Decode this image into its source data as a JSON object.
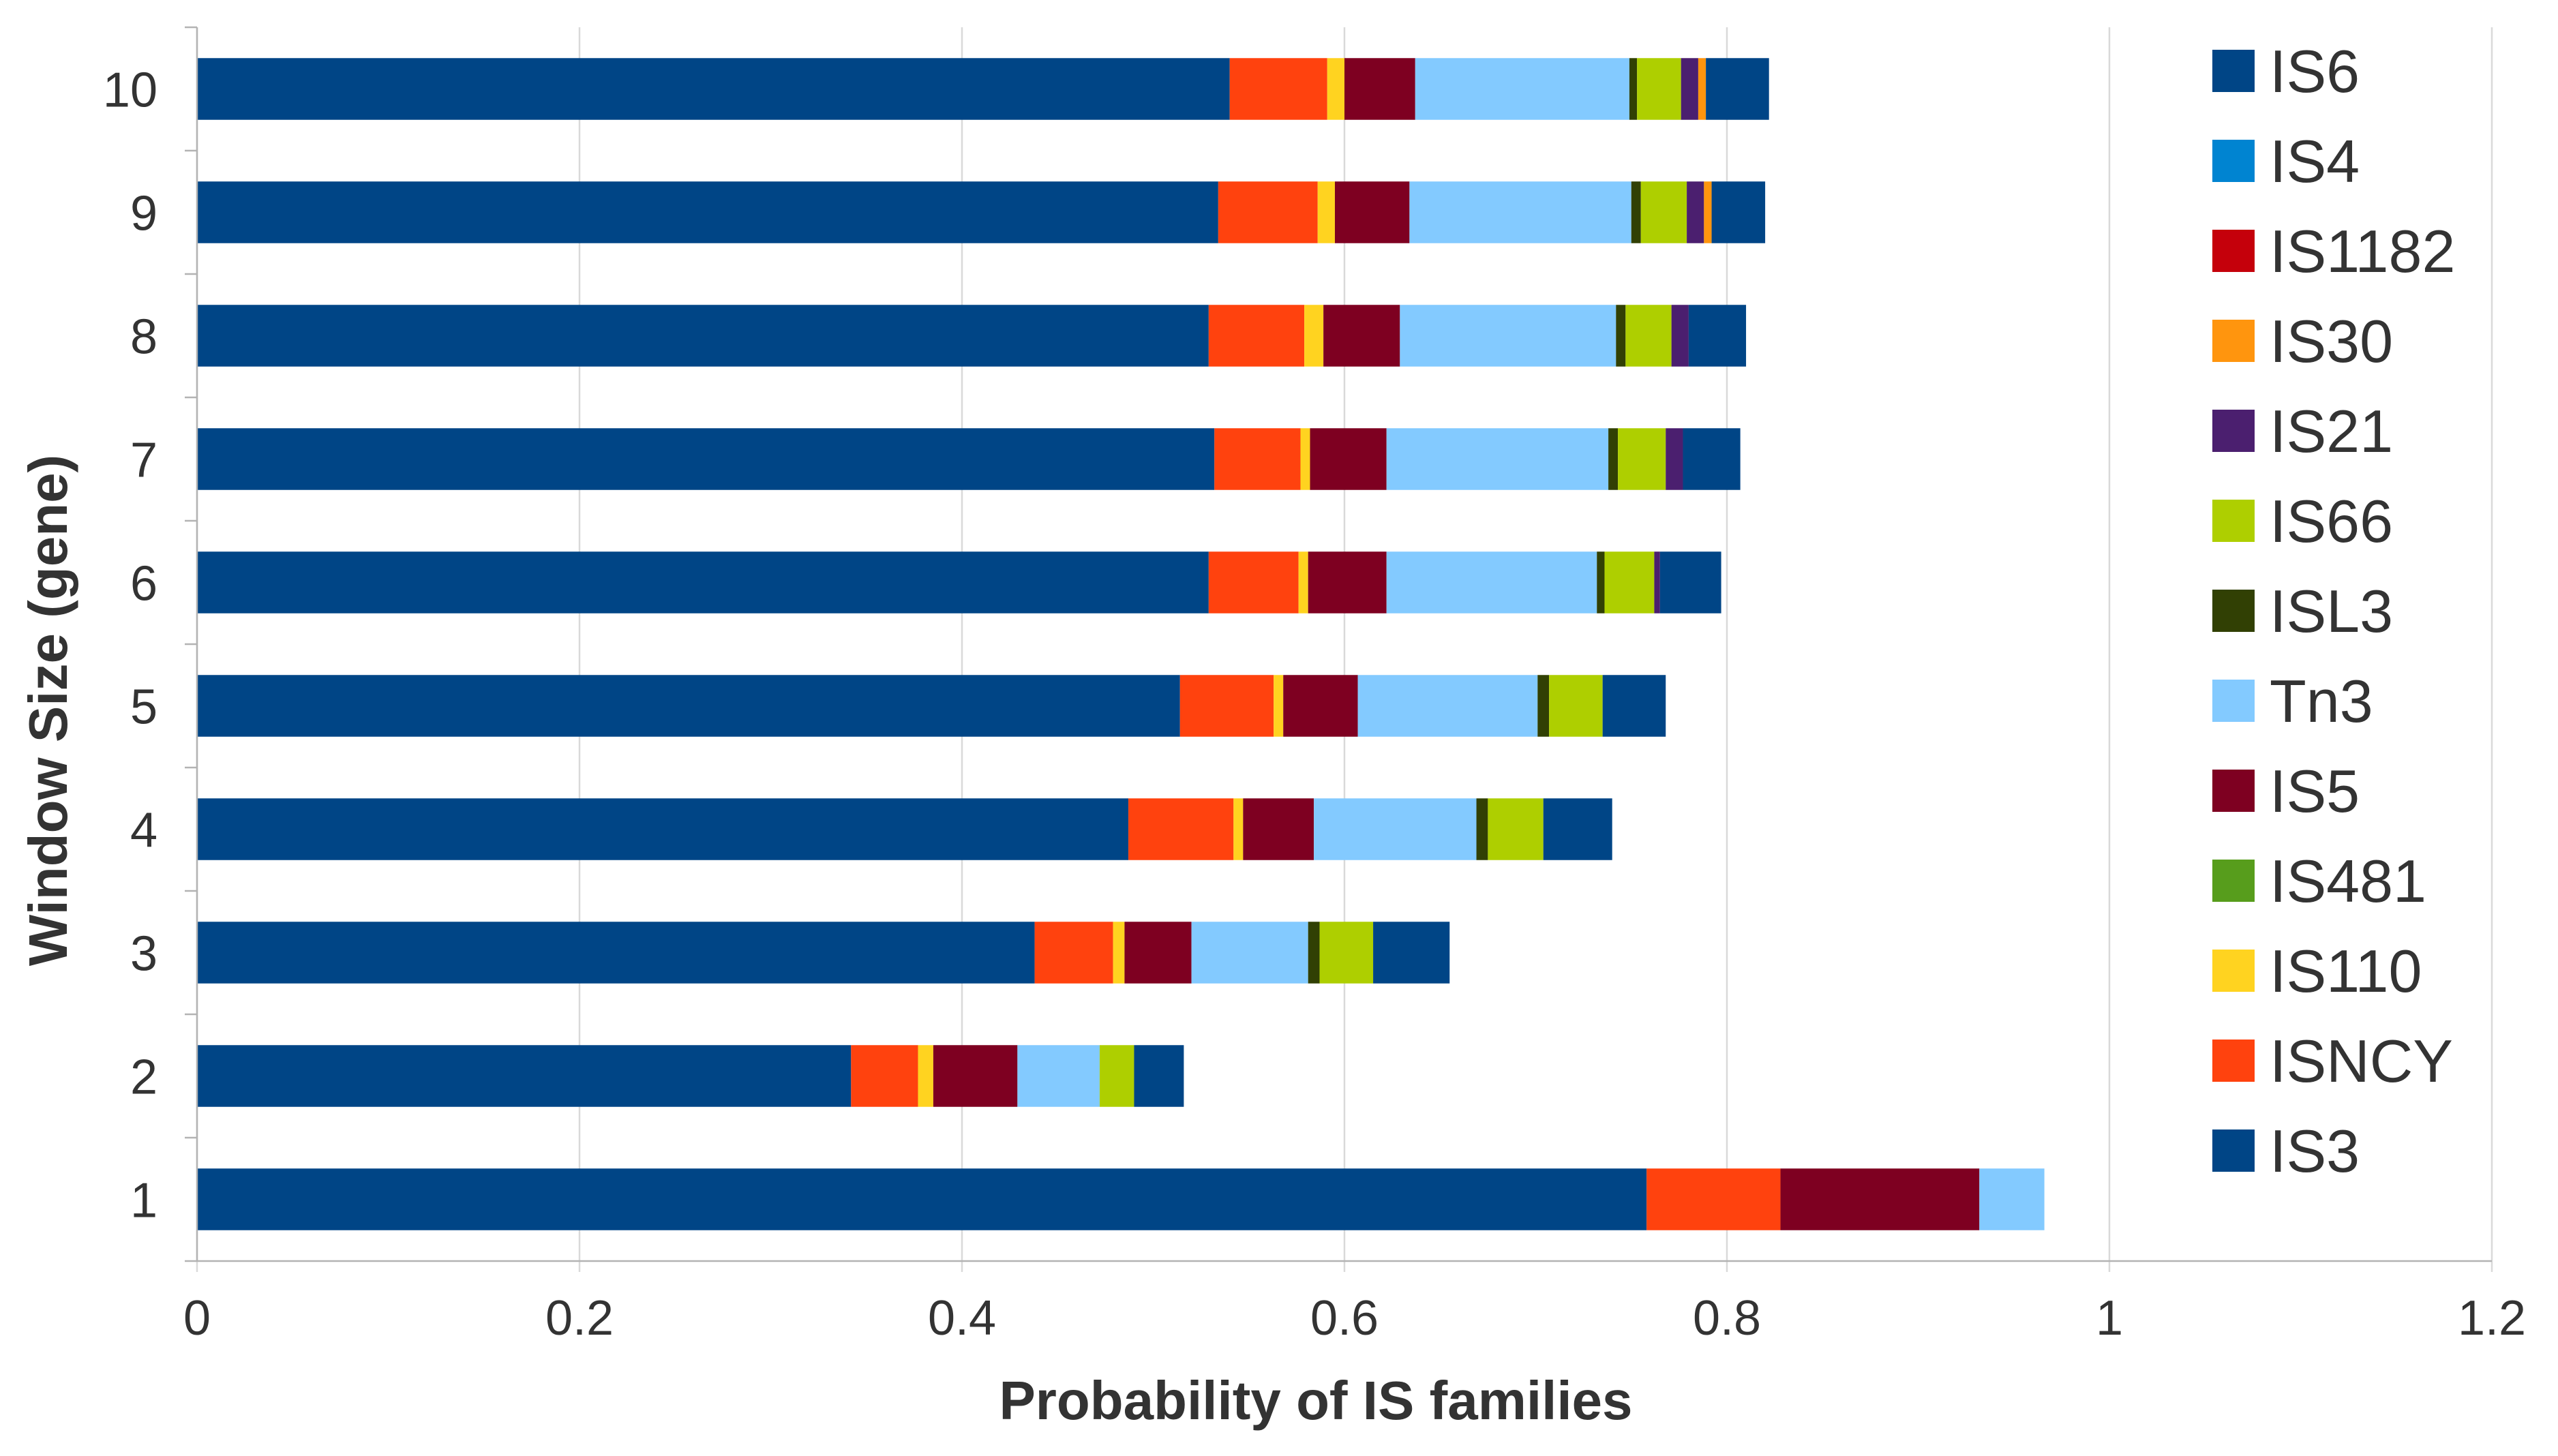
{
  "chart_data": {
    "type": "bar",
    "orientation": "horizontal",
    "stacked": true,
    "title": "",
    "xlabel": "Probability of IS families",
    "ylabel": "Window Size (gene)",
    "xlim": [
      0,
      1.2
    ],
    "xticks": [
      "0",
      "0.2",
      "0.4",
      "0.6",
      "0.8",
      "1",
      "1.2"
    ],
    "grid": true,
    "legend_position": "right",
    "categories": [
      "1",
      "2",
      "3",
      "4",
      "5",
      "6",
      "7",
      "8",
      "9",
      "10"
    ],
    "series": [
      {
        "name": "IS3",
        "color": "#004586",
        "values": [
          0.758,
          0.342,
          0.438,
          0.487,
          0.514,
          0.529,
          0.532,
          0.529,
          0.534,
          0.54
        ]
      },
      {
        "name": "ISNCY",
        "color": "#ff420e",
        "values": [
          0.07,
          0.035,
          0.041,
          0.055,
          0.049,
          0.047,
          0.045,
          0.05,
          0.052,
          0.051
        ]
      },
      {
        "name": "IS110",
        "color": "#ffd320",
        "values": [
          0.0,
          0.008,
          0.006,
          0.005,
          0.005,
          0.005,
          0.005,
          0.01,
          0.009,
          0.009
        ]
      },
      {
        "name": "IS481",
        "color": "#579d1c",
        "values": [
          0.0,
          0.0,
          0.0,
          0.0,
          0.0,
          0.0,
          0.0,
          0.0,
          0.0,
          0.0
        ]
      },
      {
        "name": "IS5",
        "color": "#7e0021",
        "values": [
          0.104,
          0.044,
          0.035,
          0.037,
          0.039,
          0.041,
          0.04,
          0.04,
          0.039,
          0.037
        ]
      },
      {
        "name": "Tn3",
        "color": "#83caff",
        "values": [
          0.034,
          0.043,
          0.061,
          0.085,
          0.094,
          0.11,
          0.116,
          0.113,
          0.116,
          0.112
        ]
      },
      {
        "name": "ISL3",
        "color": "#314004",
        "values": [
          0.0,
          0.0,
          0.006,
          0.006,
          0.006,
          0.004,
          0.005,
          0.005,
          0.005,
          0.004
        ]
      },
      {
        "name": "IS66",
        "color": "#aecf00",
        "values": [
          0.0,
          0.018,
          0.028,
          0.029,
          0.028,
          0.026,
          0.025,
          0.024,
          0.024,
          0.023
        ]
      },
      {
        "name": "IS21",
        "color": "#4b1f6f",
        "values": [
          0.0,
          0.0,
          0.0,
          0.0,
          0.0,
          0.003,
          0.009,
          0.009,
          0.009,
          0.009
        ]
      },
      {
        "name": "IS30",
        "color": "#ff950e",
        "values": [
          0.0,
          0.0,
          0.0,
          0.0,
          0.0,
          0.0,
          0.0,
          0.0,
          0.004,
          0.004
        ]
      },
      {
        "name": "IS1182",
        "color": "#c5000b",
        "values": [
          0.0,
          0.0,
          0.0,
          0.0,
          0.0,
          0.0,
          0.0,
          0.0,
          0.0,
          0.0
        ]
      },
      {
        "name": "IS4",
        "color": "#0084d1",
        "values": [
          0.0,
          0.0,
          0.0,
          0.0,
          0.0,
          0.0,
          0.0,
          0.0,
          0.0,
          0.0
        ]
      },
      {
        "name": "IS6",
        "color": "#004586",
        "values": [
          0.0,
          0.026,
          0.04,
          0.036,
          0.033,
          0.032,
          0.03,
          0.03,
          0.028,
          0.033
        ]
      }
    ],
    "legend_order": [
      "IS6",
      "IS4",
      "IS1182",
      "IS30",
      "IS21",
      "IS66",
      "ISL3",
      "Tn3",
      "IS5",
      "IS481",
      "IS110",
      "ISNCY",
      "IS3"
    ]
  }
}
